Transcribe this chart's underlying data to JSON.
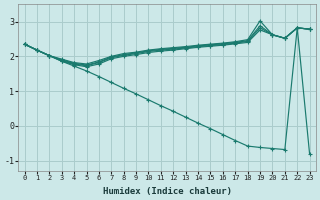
{
  "xlabel": "Humidex (Indice chaleur)",
  "xlim": [
    -0.5,
    23.5
  ],
  "ylim": [
    -1.3,
    3.5
  ],
  "yticks": [
    -1,
    0,
    1,
    2,
    3
  ],
  "xticks": [
    0,
    1,
    2,
    3,
    4,
    5,
    6,
    7,
    8,
    9,
    10,
    11,
    12,
    13,
    14,
    15,
    16,
    17,
    18,
    19,
    20,
    21,
    22,
    23
  ],
  "bg_color": "#cce8e8",
  "grid_color": "#aacccc",
  "line_color": "#1a7a6e",
  "lines": [
    {
      "x": [
        0,
        1,
        2,
        3,
        4,
        5,
        6,
        7,
        8,
        9,
        10,
        11,
        12,
        13,
        14,
        15,
        16,
        17,
        18,
        19,
        20,
        21,
        22,
        23
      ],
      "y": [
        2.35,
        2.18,
        2.02,
        1.92,
        1.82,
        1.78,
        1.88,
        2.0,
        2.08,
        2.12,
        2.18,
        2.22,
        2.25,
        2.28,
        2.32,
        2.35,
        2.38,
        2.42,
        2.48,
        3.02,
        2.62,
        2.52,
        2.82,
        2.78
      ]
    },
    {
      "x": [
        0,
        1,
        2,
        3,
        4,
        5,
        6,
        7,
        8,
        9,
        10,
        11,
        12,
        13,
        14,
        15,
        16,
        17,
        18,
        19,
        20,
        21,
        22,
        23
      ],
      "y": [
        2.35,
        2.18,
        2.02,
        1.9,
        1.8,
        1.75,
        1.84,
        1.98,
        2.05,
        2.1,
        2.16,
        2.2,
        2.23,
        2.26,
        2.3,
        2.33,
        2.36,
        2.4,
        2.45,
        2.88,
        2.62,
        2.52,
        2.82,
        2.78
      ]
    },
    {
      "x": [
        0,
        1,
        2,
        3,
        4,
        5,
        6,
        7,
        8,
        9,
        10,
        11,
        12,
        13,
        14,
        15,
        16,
        17,
        18,
        19,
        20,
        21,
        22,
        23
      ],
      "y": [
        2.35,
        2.18,
        2.02,
        1.88,
        1.78,
        1.73,
        1.82,
        1.96,
        2.03,
        2.08,
        2.14,
        2.18,
        2.21,
        2.24,
        2.28,
        2.31,
        2.34,
        2.38,
        2.43,
        2.82,
        2.62,
        2.52,
        2.82,
        2.78
      ]
    },
    {
      "x": [
        0,
        1,
        2,
        3,
        4,
        5,
        6,
        7,
        8,
        9,
        10,
        11,
        12,
        13,
        14,
        15,
        16,
        17,
        18,
        19,
        20,
        21,
        22,
        23
      ],
      "y": [
        2.35,
        2.18,
        2.02,
        1.86,
        1.76,
        1.7,
        1.78,
        1.93,
        2.0,
        2.05,
        2.11,
        2.15,
        2.18,
        2.22,
        2.26,
        2.29,
        2.32,
        2.36,
        2.4,
        2.76,
        2.62,
        2.52,
        2.82,
        2.78
      ]
    },
    {
      "x": [
        0,
        1,
        2,
        3,
        4,
        5,
        6,
        7,
        8,
        9,
        10,
        11,
        12,
        13,
        14,
        15,
        16,
        17,
        18,
        19,
        20,
        21,
        22,
        23
      ],
      "y": [
        2.35,
        2.18,
        2.02,
        1.86,
        1.72,
        1.58,
        1.42,
        1.25,
        1.08,
        0.92,
        0.75,
        0.58,
        0.42,
        0.25,
        0.08,
        -0.08,
        -0.25,
        -0.42,
        -0.58,
        -0.62,
        -0.65,
        -0.68,
        2.82,
        -0.82
      ]
    }
  ]
}
